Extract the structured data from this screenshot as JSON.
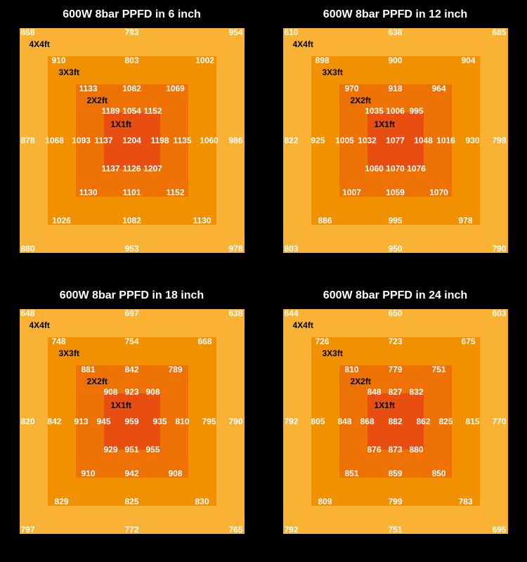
{
  "ring_colors": {
    "r4": "#f9b233",
    "r3": "#f29100",
    "r2": "#ed7203",
    "r1": "#e84e0f"
  },
  "ring_labels": {
    "r4": "4X4ft",
    "r3": "3X3ft",
    "r2": "2X2ft",
    "r1": "1X1ft"
  },
  "panels": [
    {
      "title": "600W 8bar PPFD in 6 inch",
      "r4": {
        "tl": "868",
        "tc": "783",
        "tr": "954",
        "ml": "878",
        "mr": "986",
        "bl": "880",
        "bc": "953",
        "br": "978"
      },
      "r3": {
        "tl": "910",
        "tc": "803",
        "tr": "1002",
        "ml": "1068",
        "mr": "1060",
        "bl": "1026",
        "bc": "1082",
        "br": "1130"
      },
      "r2": {
        "tl": "1133",
        "tc": "1082",
        "tr": "1069",
        "ml": "1093",
        "mr": "1135",
        "bl": "1130",
        "bc": "1101",
        "br": "1152"
      },
      "r1": {
        "tl": "1189",
        "tc": "1054",
        "tr": "1152",
        "ml": "1137",
        "cc": "1204",
        "mr": "1198",
        "bl": "1137",
        "bc": "1126",
        "br": "1207"
      }
    },
    {
      "title": "600W 8bar PPFD in 12 inch",
      "r4": {
        "tl": "610",
        "tc": "638",
        "tr": "685",
        "ml": "822",
        "mr": "798",
        "bl": "803",
        "bc": "950",
        "br": "790"
      },
      "r3": {
        "tl": "898",
        "tc": "900",
        "tr": "904",
        "ml": "925",
        "mr": "930",
        "bl": "886",
        "bc": "995",
        "br": "978"
      },
      "r2": {
        "tl": "970",
        "tc": "918",
        "tr": "964",
        "ml": "1005",
        "mr": "1016",
        "bl": "1007",
        "bc": "1059",
        "br": "1070"
      },
      "r1": {
        "tl": "1035",
        "tc": "1006",
        "tr": "995",
        "ml": "1032",
        "cc": "1077",
        "mr": "1048",
        "bl": "1060",
        "bc": "1070",
        "br": "1076"
      }
    },
    {
      "title": "600W 8bar PPFD in 18 inch",
      "r4": {
        "tl": "648",
        "tc": "697",
        "tr": "638",
        "ml": "820",
        "mr": "790",
        "bl": "797",
        "bc": "772",
        "br": "765"
      },
      "r3": {
        "tl": "748",
        "tc": "754",
        "tr": "668",
        "ml": "842",
        "mr": "795",
        "bl": "829",
        "bc": "825",
        "br": "830"
      },
      "r2": {
        "tl": "881",
        "tc": "842",
        "tr": "789",
        "ml": "913",
        "mr": "810",
        "bl": "910",
        "bc": "942",
        "br": "908"
      },
      "r1": {
        "tl": "908",
        "tc": "923",
        "tr": "908",
        "ml": "945",
        "cc": "959",
        "mr": "935",
        "bl": "929",
        "bc": "951",
        "br": "955"
      }
    },
    {
      "title": "600W 8bar PPFD in 24 inch",
      "r4": {
        "tl": "644",
        "tc": "650",
        "tr": "603",
        "ml": "792",
        "mr": "770",
        "bl": "792",
        "bc": "751",
        "br": "695"
      },
      "r3": {
        "tl": "726",
        "tc": "723",
        "tr": "675",
        "ml": "805",
        "mr": "815",
        "bl": "809",
        "bc": "799",
        "br": "783"
      },
      "r2": {
        "tl": "810",
        "tc": "779",
        "tr": "751",
        "ml": "848",
        "mr": "825",
        "bl": "851",
        "bc": "859",
        "br": "850"
      },
      "r1": {
        "tl": "848",
        "tc": "827",
        "tr": "832",
        "ml": "868",
        "cc": "882",
        "mr": "862",
        "bl": "876",
        "bc": "873",
        "br": "880"
      }
    }
  ]
}
